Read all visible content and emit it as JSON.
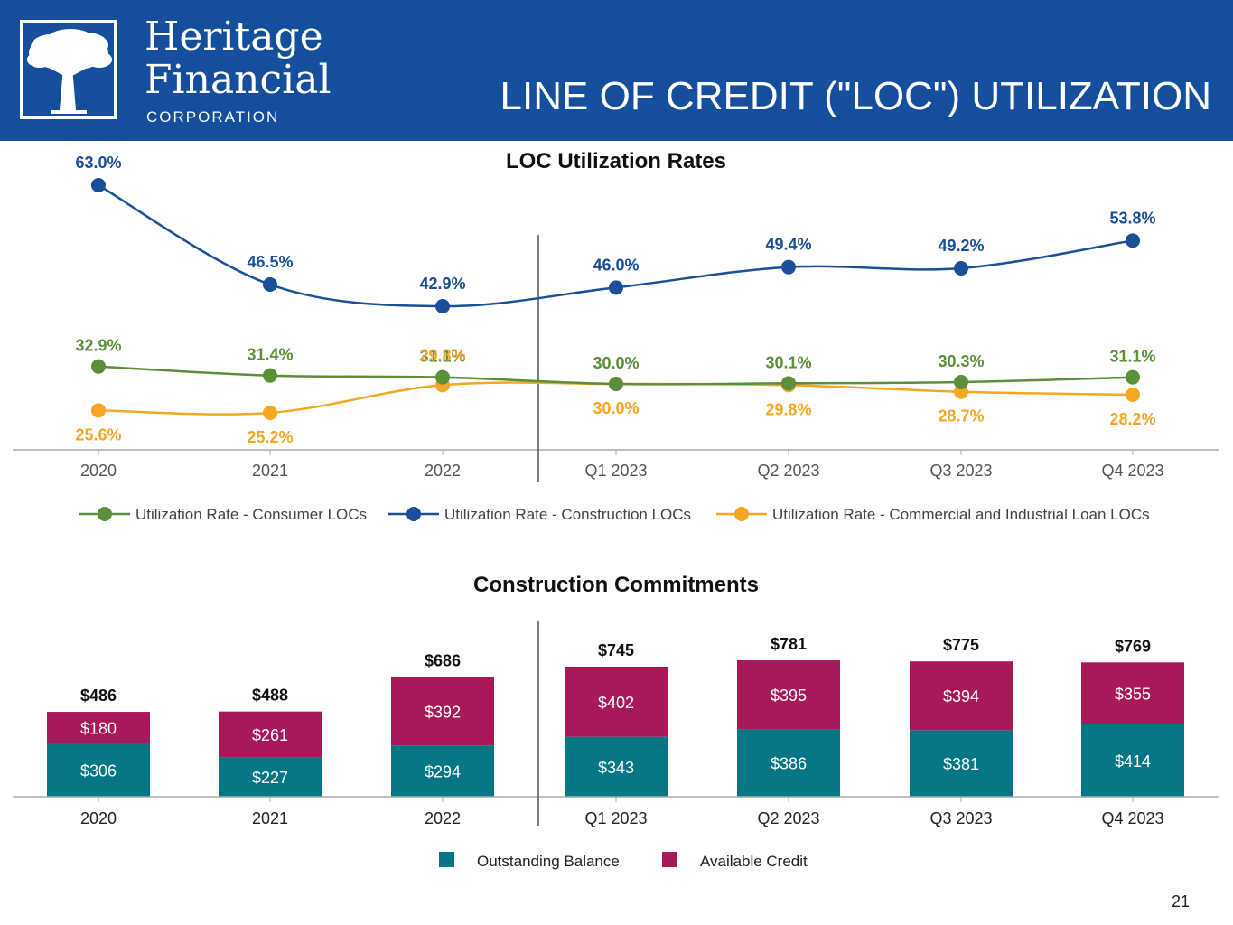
{
  "header": {
    "brand_line1": "Heritage",
    "brand_line2": "Financial",
    "brand_line3": "CORPORATION",
    "title": "LINE OF CREDIT (\"LOC\") UTILIZATION",
    "bg_color": "#144e9c"
  },
  "page_number": "21",
  "chart_data": [
    {
      "type": "line",
      "title": "LOC Utilization Rates",
      "categories": [
        "2020",
        "2021",
        "2022",
        "Q1 2023",
        "Q2 2023",
        "Q3 2023",
        "Q4 2023"
      ],
      "divider_after_category": "2022",
      "series": [
        {
          "name": "Utilization Rate - Consumer LOCs",
          "color": "#5b8f3a",
          "values": [
            32.9,
            31.4,
            31.1,
            30.0,
            30.1,
            30.3,
            31.1
          ],
          "labels": [
            "32.9%",
            "31.4%",
            "31.1%",
            "30.0%",
            "30.1%",
            "30.3%",
            "31.1%"
          ]
        },
        {
          "name": "Utilization Rate - Construction LOCs",
          "color": "#1a4f99",
          "values": [
            63.0,
            46.5,
            42.9,
            46.0,
            49.4,
            49.2,
            53.8
          ],
          "labels": [
            "63.0%",
            "46.5%",
            "42.9%",
            "46.0%",
            "49.4%",
            "49.2%",
            "53.8%"
          ]
        },
        {
          "name": "Utilization Rate - Commercial and Industrial Loan LOCs",
          "color": "#f5a623",
          "values": [
            25.6,
            25.2,
            29.8,
            30.0,
            29.8,
            28.7,
            28.2
          ],
          "labels": [
            "25.6%",
            "25.2%",
            "29.8%",
            "30.0%",
            "29.8%",
            "28.7%",
            "28.2%"
          ]
        }
      ],
      "legend_position": "bottom"
    },
    {
      "type": "bar",
      "stacked": true,
      "title": "Construction Commitments",
      "categories": [
        "2020",
        "2021",
        "2022",
        "Q1 2023",
        "Q2 2023",
        "Q3 2023",
        "Q4 2023"
      ],
      "divider_after_category": "2022",
      "series": [
        {
          "name": "Outstanding Balance",
          "color": "#057684",
          "values": [
            306,
            227,
            294,
            343,
            386,
            381,
            414
          ],
          "labels": [
            "$306",
            "$227",
            "$294",
            "$343",
            "$386",
            "$381",
            "$414"
          ]
        },
        {
          "name": "Available Credit",
          "color": "#a8195a",
          "values": [
            180,
            261,
            392,
            402,
            395,
            394,
            355
          ],
          "labels": [
            "$180",
            "$261",
            "$392",
            "$402",
            "$395",
            "$394",
            "$355"
          ]
        }
      ],
      "totals": [
        486,
        488,
        686,
        745,
        781,
        775,
        769
      ],
      "total_labels": [
        "$486",
        "$488",
        "$686",
        "$745",
        "$781",
        "$775",
        "$769"
      ],
      "legend_position": "bottom"
    }
  ]
}
